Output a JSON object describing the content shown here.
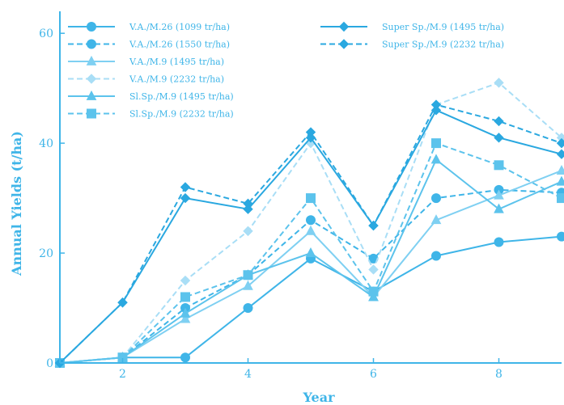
{
  "chart_data": {
    "type": "line",
    "title": "",
    "xlabel": "Year",
    "ylabel": "Annual Yields (t/ha)",
    "xlim": [
      1,
      9
    ],
    "ylim": [
      0,
      64
    ],
    "xticks": [
      2,
      4,
      6,
      8
    ],
    "yticks": [
      0,
      20,
      40,
      60
    ],
    "x": [
      1,
      2,
      3,
      4,
      5,
      6,
      7,
      8,
      9
    ],
    "grid": false,
    "legend_position": "top",
    "series": [
      {
        "name": "V.A./M.26 (1099 tr/ha)",
        "color": "#3fb5e8",
        "dash": "solid",
        "marker": "circle",
        "values": [
          0,
          1,
          1,
          10,
          19,
          13,
          19.5,
          22,
          23
        ]
      },
      {
        "name": "V.A./M.26 (1550 tr/ha)",
        "color": "#3fb5e8",
        "dash": "dashed",
        "marker": "circle",
        "values": [
          0,
          1,
          10,
          16,
          26,
          19,
          30,
          31.5,
          31
        ]
      },
      {
        "name": "V.A./M.9 (1495 tr/ha)",
        "color": "#7fd0f2",
        "dash": "solid",
        "marker": "triangle",
        "values": [
          0,
          1,
          8,
          14,
          24,
          12,
          26,
          30.5,
          35
        ]
      },
      {
        "name": "V.A./M.9 (2232 tr/ha)",
        "color": "#a9def6",
        "dash": "dashed",
        "marker": "diamond",
        "values": [
          0,
          1,
          15,
          24,
          40,
          17,
          47,
          51,
          41
        ]
      },
      {
        "name": "Sl.Sp./M.9 (1495 tr/ha)",
        "color": "#5cc3ec",
        "dash": "solid",
        "marker": "triangle",
        "values": [
          0,
          1,
          9,
          16,
          20,
          12,
          37,
          28,
          33
        ]
      },
      {
        "name": "Sl.Sp./M.9 (2232 tr/ha)",
        "color": "#5cc3ec",
        "dash": "dashed",
        "marker": "square",
        "values": [
          0,
          1,
          12,
          16,
          30,
          13,
          40,
          36,
          30
        ]
      },
      {
        "name": "Super Sp./M.9 (1495 tr/ha)",
        "color": "#2aa8e0",
        "dash": "solid",
        "marker": "diamond",
        "values": [
          0,
          11,
          30,
          28,
          41,
          25,
          46,
          41,
          38
        ]
      },
      {
        "name": "Super Sp./M.9 (2232 tr/ha)",
        "color": "#2aa8e0",
        "dash": "dashed",
        "marker": "diamond",
        "values": [
          0,
          11,
          32,
          29,
          42,
          25,
          47,
          44,
          40
        ]
      }
    ]
  }
}
